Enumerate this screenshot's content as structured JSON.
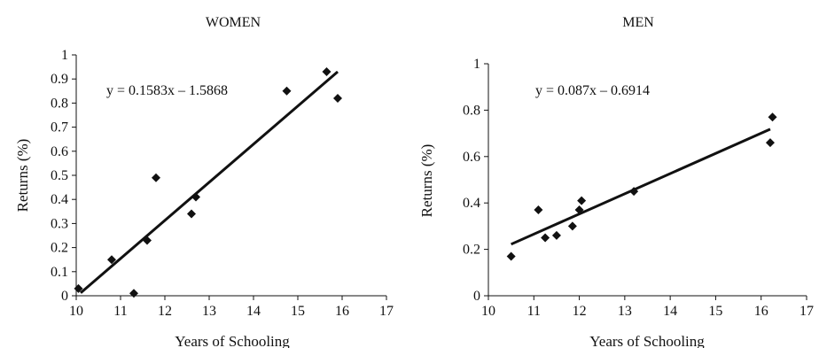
{
  "chart_data": [
    {
      "type": "scatter",
      "title": "WOMEN",
      "xlabel": "Years of Schooling",
      "ylabel": "Returns (%)",
      "xlim": [
        10,
        17
      ],
      "ylim": [
        0,
        1
      ],
      "xticks": [
        "10",
        "11",
        "12",
        "13",
        "14",
        "15",
        "16",
        "17"
      ],
      "yticks": [
        "0",
        "0.1",
        "0.2",
        "0.3",
        "0.4",
        "0.5",
        "0.6",
        "0.7",
        "0.8",
        "0.9",
        "1"
      ],
      "points": [
        {
          "x": 10.05,
          "y": 0.03
        },
        {
          "x": 10.8,
          "y": 0.15
        },
        {
          "x": 11.3,
          "y": 0.01
        },
        {
          "x": 11.6,
          "y": 0.23
        },
        {
          "x": 11.8,
          "y": 0.49
        },
        {
          "x": 12.6,
          "y": 0.34
        },
        {
          "x": 12.7,
          "y": 0.41
        },
        {
          "x": 14.75,
          "y": 0.85
        },
        {
          "x": 15.65,
          "y": 0.93
        },
        {
          "x": 15.9,
          "y": 0.82
        }
      ],
      "trendline": {
        "equation": "y = 0.1583x – 1.5868",
        "slope": 0.1583,
        "intercept": -1.5868,
        "x_range": [
          10.1,
          15.9
        ]
      },
      "grid": false,
      "legend": "none"
    },
    {
      "type": "scatter",
      "title": "MEN",
      "xlabel": "Years of Schooling",
      "ylabel": "Returns (%)",
      "xlim": [
        10,
        17
      ],
      "ylim": [
        0,
        1
      ],
      "xticks": [
        "10",
        "11",
        "12",
        "13",
        "14",
        "15",
        "16",
        "17"
      ],
      "yticks": [
        "0",
        "0.2",
        "0.4",
        "0.6",
        "0.8",
        "1"
      ],
      "points": [
        {
          "x": 10.5,
          "y": 0.17
        },
        {
          "x": 11.1,
          "y": 0.37
        },
        {
          "x": 11.25,
          "y": 0.25
        },
        {
          "x": 11.5,
          "y": 0.26
        },
        {
          "x": 11.85,
          "y": 0.3
        },
        {
          "x": 12.0,
          "y": 0.37
        },
        {
          "x": 12.05,
          "y": 0.41
        },
        {
          "x": 13.2,
          "y": 0.45
        },
        {
          "x": 16.2,
          "y": 0.66
        },
        {
          "x": 16.25,
          "y": 0.77
        }
      ],
      "trendline": {
        "equation": "y = 0.087x – 0.6914",
        "slope": 0.087,
        "intercept": -0.6914,
        "x_range": [
          10.5,
          16.2
        ]
      },
      "grid": false,
      "legend": "none"
    }
  ]
}
